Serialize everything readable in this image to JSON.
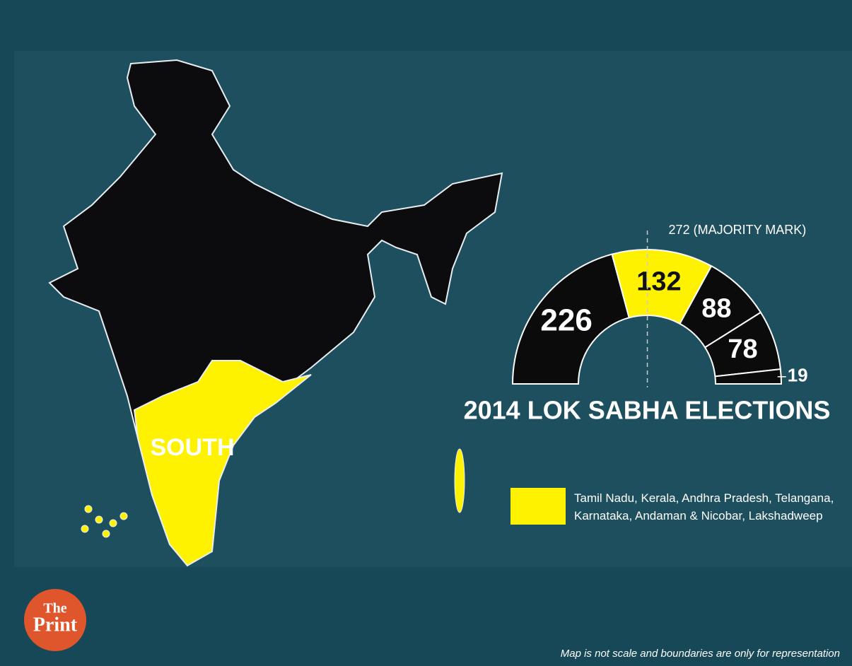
{
  "chart_data": {
    "type": "semi-donut",
    "title": "2014 LOK SABHA ELECTIONS",
    "values": [
      226,
      132,
      88,
      78,
      19
    ],
    "colors": [
      "#0b0b0c",
      "#fff200",
      "#0b0b0c",
      "#0b0b0c",
      "#0b0b0c"
    ],
    "majority": {
      "value": 272,
      "label": "272 (MAJORITY MARK)"
    },
    "legend": {
      "color": "#fff200",
      "label": "Tamil Nadu, Kerala, Andhra Pradesh, Telangana, Karnataka, Andaman & Nicobar, Lakshadweep"
    }
  },
  "map": {
    "region_label": "SOUTH"
  },
  "logo": {
    "top": "The",
    "bottom": "Print"
  },
  "footnote": "Map is not scale and boundaries are only for representation"
}
